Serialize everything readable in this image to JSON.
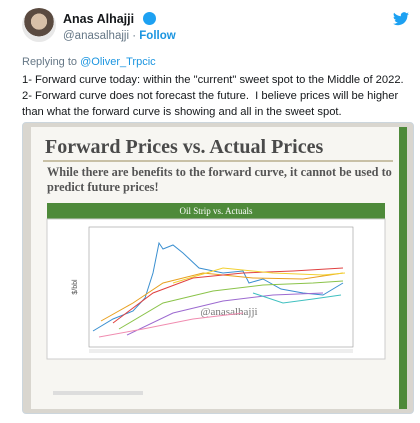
{
  "user": {
    "name": "Anas Alhajji",
    "handle": "@anasalhajji",
    "separator": "·",
    "follow": "Follow"
  },
  "reply": {
    "prefix": "Replying to",
    "to": "@Oliver_Trpcic"
  },
  "tweet": {
    "lines": [
      "1- Forward curve today: within the \"current\" sweet spot to the Middle of 2022.",
      "2- Forward curve does not forecast the future.  I believe prices will be higher than what the forward curve is showing and all in the sweet spot."
    ]
  },
  "media": {
    "slide": {
      "title": "Forward Prices vs. Actual Prices",
      "subtitle": "While there are benefits to the forward curve, it cannot be used to predict future prices!",
      "chart_title": "Oil Strip vs. Actuals",
      "y_label": "$/bbl",
      "watermark": "@anasalhajji"
    }
  }
}
